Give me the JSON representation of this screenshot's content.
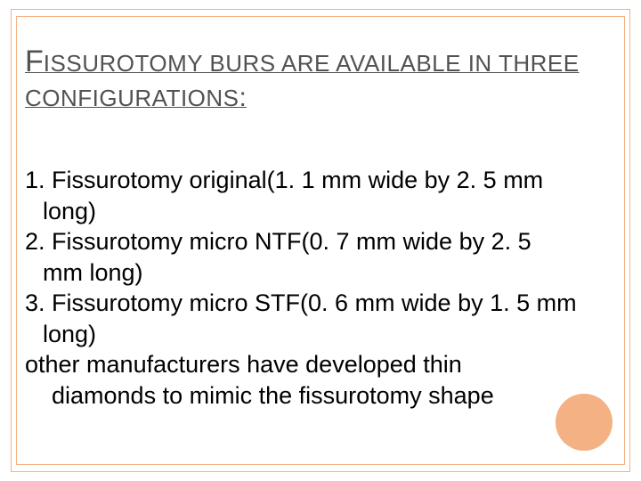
{
  "title": {
    "cap": "F",
    "line1_rest": "ISSUROTOMY BURS ARE AVAILABLE IN THREE",
    "line2_rest": "CONFIGURATIONS",
    "colon": ":"
  },
  "body": {
    "l1": "1. Fissurotomy original(1. 1 mm wide by 2. 5 mm",
    "l2": "long)",
    "l3": "2. Fissurotomy micro NTF(0. 7 mm wide by 2. 5",
    "l4": "mm long)",
    "l5": "3. Fissurotomy micro STF(0. 6 mm wide by 1. 5 mm",
    "l6": "long)",
    "l7": "other manufacturers have developed thin",
    "l8": "diamonds to mimic the fissurotomy shape"
  },
  "style": {
    "border_color": "#f4b183",
    "circle_color": "#f4b183",
    "title_color": "#525252",
    "body_color": "#000000",
    "background": "#ffffff",
    "title_cap_size": 34,
    "title_rest_size": 26,
    "body_size": 27,
    "circle_diameter": 64
  }
}
